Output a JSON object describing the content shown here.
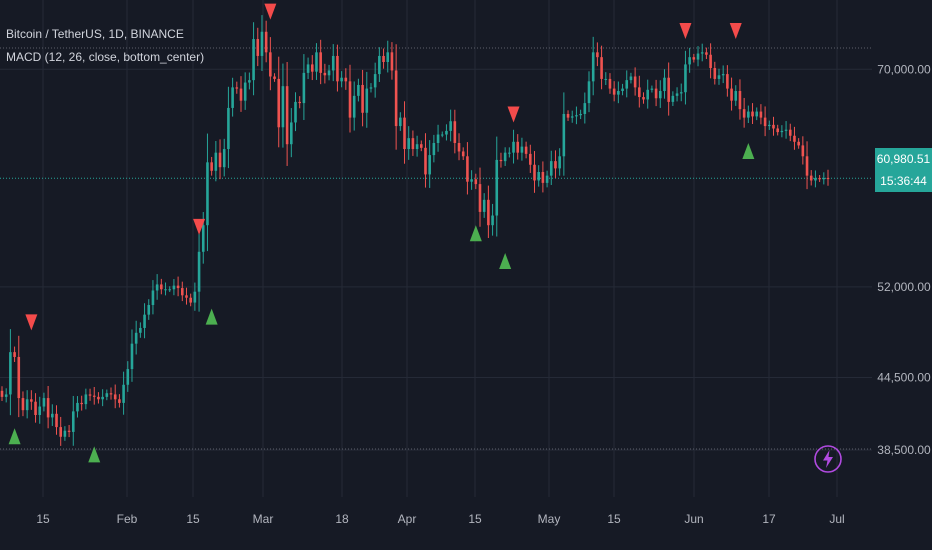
{
  "legend": {
    "symbol_line": "Bitcoin / TetherUS, 1D, BINANCE",
    "indicator_line": "MACD (12, 26, close, bottom_center)"
  },
  "price_badge": {
    "value": "60,980.51",
    "countdown": "15:36:44"
  },
  "colors": {
    "background": "#161a25",
    "up": "#26a69a",
    "down": "#ef5350",
    "buy_marker": "#4caf50",
    "sell_marker": "#f44b4b",
    "grid": "#252a37",
    "axis_text": "#b2b5be",
    "bolt": "#b04ae0"
  },
  "icons": {
    "bolt": "lightning-bolt-icon"
  },
  "chart_data": {
    "type": "candlestick",
    "title": "Bitcoin / TetherUS, 1D, BINANCE",
    "indicator": "MACD (12, 26, close, bottom_center)",
    "y_ticks": [
      {
        "value": 38500,
        "label": "38,500.00"
      },
      {
        "value": 44500,
        "label": "44,500.00"
      },
      {
        "value": 52000,
        "label": "52,000.00"
      },
      {
        "value": 70000,
        "label": "70,000.00"
      }
    ],
    "x_ticks": [
      "15",
      "Feb",
      "15",
      "Mar",
      "18",
      "Apr",
      "15",
      "May",
      "15",
      "Jun",
      "17",
      "Jul"
    ],
    "current_price": 60980.51,
    "grid": true,
    "closes": [
      42900,
      43100,
      46600,
      46200,
      42800,
      41800,
      42700,
      42500,
      41400,
      42100,
      42800,
      41200,
      41500,
      40400,
      39600,
      40100,
      40000,
      41700,
      42400,
      42300,
      43100,
      43000,
      42900,
      42700,
      42900,
      43200,
      43100,
      42700,
      42400,
      43900,
      45200,
      47300,
      48200,
      48600,
      49700,
      50500,
      51700,
      52200,
      51800,
      51800,
      51800,
      52100,
      51900,
      51300,
      51100,
      50700,
      51600,
      54900,
      57100,
      62300,
      61600,
      63100,
      61900,
      63400,
      66800,
      68500,
      68400,
      67400,
      68900,
      69100,
      72500,
      71100,
      73100,
      71400,
      69400,
      69200,
      65200,
      68600,
      63800,
      65600,
      67300,
      67200,
      69700,
      70400,
      69800,
      71400,
      69700,
      69500,
      69900,
      71100,
      69000,
      69300,
      69000,
      66000,
      67800,
      68700,
      66400,
      68400,
      68500,
      69600,
      71100,
      70600,
      71400,
      69900,
      65300,
      66000,
      63400,
      64300,
      63400,
      63800,
      63500,
      61300,
      62900,
      63900,
      64600,
      64600,
      64900,
      65700,
      63900,
      63200,
      62800,
      60700,
      60900,
      60500,
      58200,
      59200,
      57100,
      57900,
      62500,
      62400,
      63100,
      63100,
      64000,
      63100,
      63600,
      63000,
      62100,
      60800,
      61500,
      60600,
      61200,
      62400,
      61800,
      62800,
      66300,
      66000,
      66100,
      66200,
      66300,
      67200,
      69000,
      71400,
      71000,
      69200,
      69200,
      68400,
      67900,
      68200,
      68400,
      69100,
      69400,
      68500,
      67700,
      67500,
      68300,
      68400,
      67600,
      68200,
      69300,
      67300,
      67800,
      68000,
      68100,
      70400,
      71000,
      70800,
      71300,
      71400,
      71200,
      70100,
      69200,
      69500,
      69600,
      68400,
      67400,
      68200,
      66700,
      66000,
      66500,
      66100,
      66500,
      66000,
      65300,
      65400,
      65100,
      64800,
      64900,
      65000,
      64500,
      64000,
      63700,
      62800,
      61200,
      60800,
      61000,
      60900,
      61000,
      60980.51
    ],
    "sell_signals": [
      {
        "index": 7,
        "price": 48400
      },
      {
        "index": 47,
        "price": 56300
      },
      {
        "index": 64,
        "price": 74100
      },
      {
        "index": 122,
        "price": 65600
      },
      {
        "index": 163,
        "price": 72500
      },
      {
        "index": 175,
        "price": 72500
      }
    ],
    "buy_signals": [
      {
        "index": 3,
        "price": 40300
      },
      {
        "index": 22,
        "price": 38800
      },
      {
        "index": 50,
        "price": 50200
      },
      {
        "index": 113,
        "price": 57100
      },
      {
        "index": 120,
        "price": 54800
      },
      {
        "index": 178,
        "price": 63900
      }
    ]
  }
}
